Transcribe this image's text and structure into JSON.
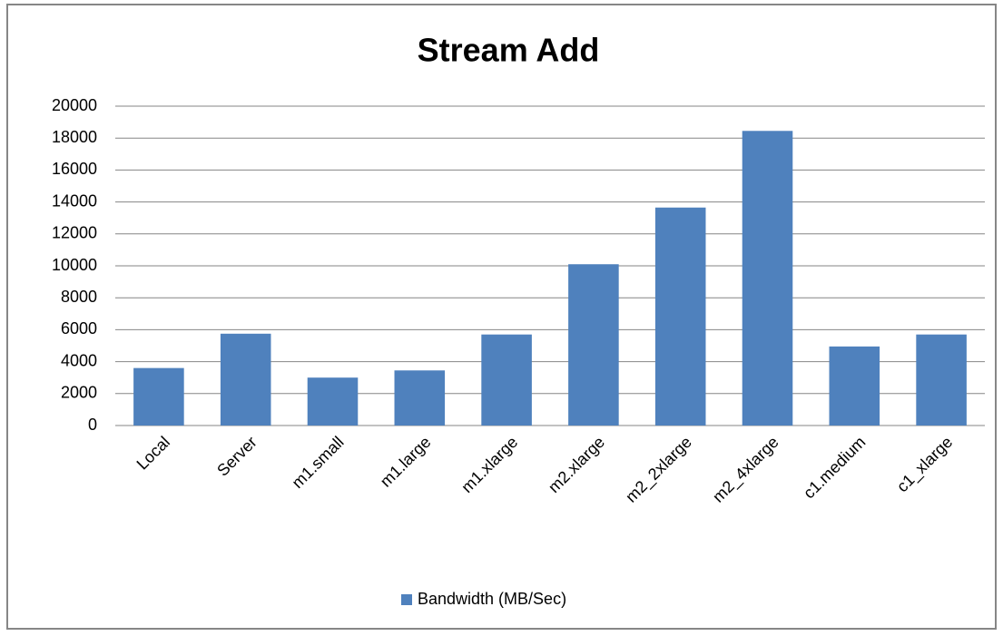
{
  "chart_data": {
    "type": "bar",
    "title": "Stream Add",
    "categories": [
      "Local",
      "Server",
      "m1.small",
      "m1.large",
      "m1.xlarge",
      "m2.xlarge",
      "m2_2xlarge",
      "m2_4xlarge",
      "c1.medium",
      "c1_xlarge"
    ],
    "series": [
      {
        "name": "Bandwidth (MB/Sec)",
        "color": "#4f81bd",
        "values": [
          3600,
          5750,
          3000,
          3450,
          5700,
          10100,
          13650,
          18450,
          4950,
          5700
        ]
      }
    ],
    "ylim": [
      0,
      20000
    ],
    "yticks": [
      0,
      2000,
      4000,
      6000,
      8000,
      10000,
      12000,
      14000,
      16000,
      18000,
      20000
    ],
    "grid": true,
    "legend": "bottom"
  }
}
